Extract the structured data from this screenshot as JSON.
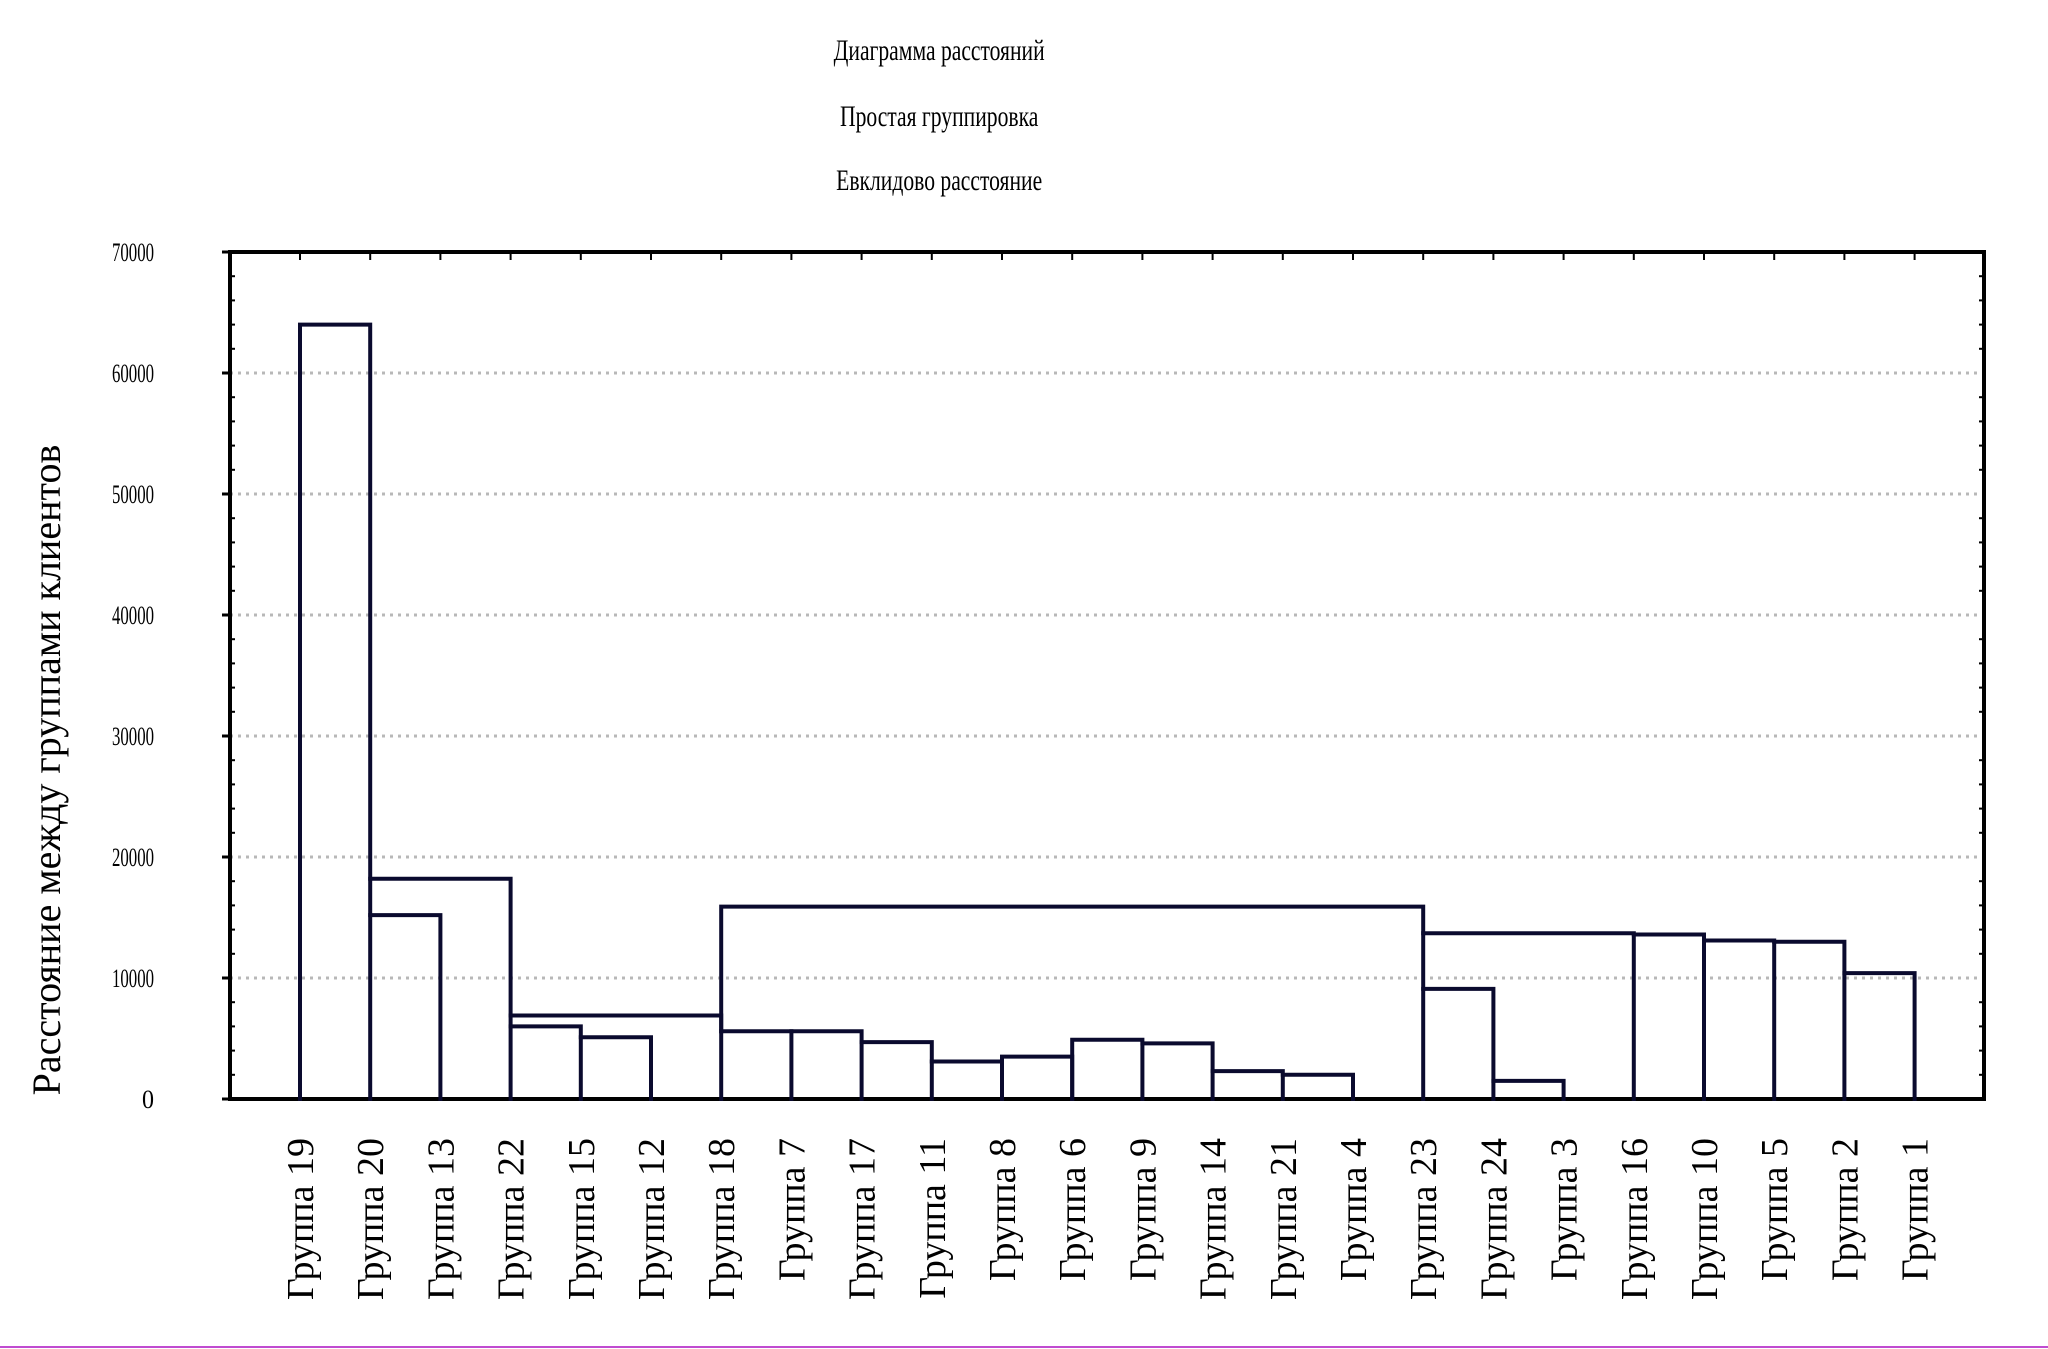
{
  "titles": [
    "Диаграмма расстояний",
    "Простая группировка",
    "Евклидово расстояние"
  ],
  "colors": {
    "line": "#0a0a2e",
    "grid": "#b8b8b8",
    "frame": "#000000",
    "bottom_rule": "#c04bd0"
  },
  "chart_data": {
    "type": "dendrogram",
    "title": "Диаграмма расстояний",
    "subtitle": [
      "Простая группировка",
      "Евклидово расстояние"
    ],
    "xlabel": "",
    "ylabel": "Расстояние между группами клиентов",
    "ylim": [
      0,
      70000
    ],
    "yticks": [
      0,
      10000,
      20000,
      30000,
      40000,
      50000,
      60000,
      70000
    ],
    "grid": true,
    "leaves": [
      "Группа 19",
      "Группа 20",
      "Группа 13",
      "Группа 22",
      "Группа 15",
      "Группа 12",
      "Группа 18",
      "Группа 7",
      "Группа 17",
      "Группа 11",
      "Группа 8",
      "Группа 6",
      "Группа 9",
      "Группа 14",
      "Группа 21",
      "Группа 4",
      "Группа 23",
      "Группа 24",
      "Группа 3",
      "Группа 16",
      "Группа 10",
      "Группа 5",
      "Группа 2",
      "Группа 1"
    ],
    "links": [
      {
        "left": "Группа 20",
        "right": "Группа 13",
        "distance": 15200
      },
      {
        "left": "Группа 15",
        "right": "Группа 12",
        "distance": 5100
      },
      {
        "left": "Группа 22",
        "right": "Группа 15",
        "distance": 6000
      },
      {
        "left": "Группа 11",
        "right": "Группа 8",
        "distance": 3100
      },
      {
        "left": "Группа 8",
        "right": "Группа 6",
        "distance": 3500
      },
      {
        "left": "Группа 17",
        "right": "Группа 11",
        "distance": 4700
      },
      {
        "left": "Группа 21",
        "right": "Группа 4",
        "distance": 2000
      },
      {
        "left": "Группа 14",
        "right": "Группа 21",
        "distance": 2300
      },
      {
        "left": "Группа 9",
        "right": "Группа 14",
        "distance": 4600
      },
      {
        "left": "Группа 6",
        "right": "Группа 9",
        "distance": 4900
      },
      {
        "left": "Группа 7",
        "right": "Группа 17",
        "distance": 5600
      },
      {
        "left": "Группа 18",
        "right": "Группа 7",
        "distance": 5600
      },
      {
        "left": "Группа 22",
        "right": "Группа 18",
        "distance": 6900
      },
      {
        "left": "Группа 24",
        "right": "Группа 3",
        "distance": 1500
      },
      {
        "left": "Группа 23",
        "right": "Группа 24",
        "distance": 9100
      },
      {
        "left": "Группа 2",
        "right": "Группа 1",
        "distance": 10400
      },
      {
        "left": "Группа 5",
        "right": "Группа 2",
        "distance": 13000
      },
      {
        "left": "Группа 10",
        "right": "Группа 5",
        "distance": 13100
      },
      {
        "left": "Группа 16",
        "right": "Группа 10",
        "distance": 13600
      },
      {
        "left": "Группа 23",
        "right": "Группа 16",
        "distance": 13700
      },
      {
        "left": "Группа 18",
        "right": "Группа 23",
        "distance": 15900
      },
      {
        "left": "Группа 20",
        "right": "Группа 22",
        "distance": 18200
      },
      {
        "left": "Группа 19",
        "right": "Группа 20",
        "distance": 64000
      }
    ]
  }
}
